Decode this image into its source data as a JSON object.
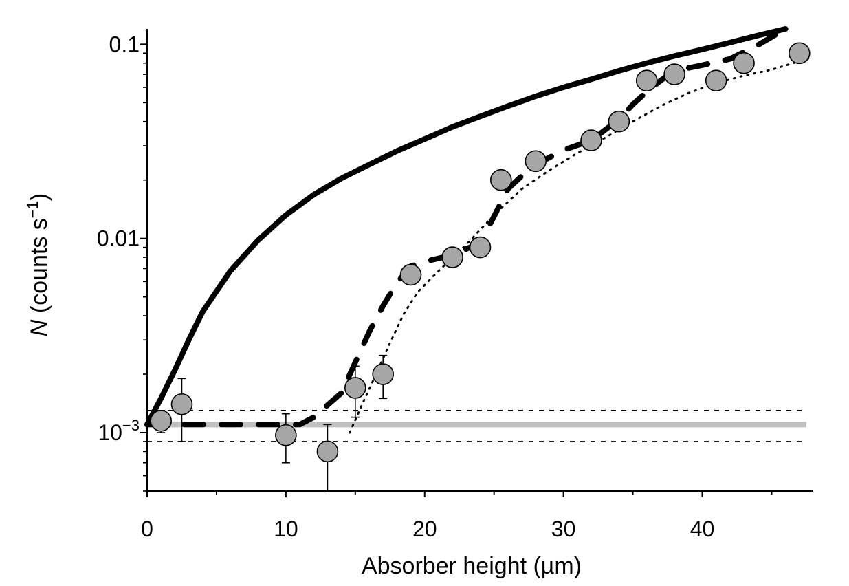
{
  "chart_data": {
    "type": "scatter",
    "xlabel": "Absorber height  (µm)",
    "ylabel": {
      "symbol": "N",
      "rest": " (counts s",
      "sup": "−1",
      "close": ")"
    },
    "xlim": [
      0,
      48
    ],
    "ylim": [
      0.0005,
      0.12
    ],
    "yscale": "log",
    "x_ticks": [
      0,
      10,
      20,
      30,
      40
    ],
    "x_tick_labels": [
      "0",
      "10",
      "20",
      "30",
      "40"
    ],
    "y_ticks": [
      0.001,
      0.01,
      0.1
    ],
    "y_tick_labels": [
      {
        "base": "10",
        "sup": "−3"
      },
      {
        "text": "0.01"
      },
      {
        "text": "0.1"
      }
    ],
    "grid": false,
    "series": [
      {
        "style": "markers-with-error-bars",
        "color": "#a6a6a6",
        "points": [
          {
            "x": 1,
            "y": 0.00115,
            "ylo": 0.001,
            "yhi": 0.0013
          },
          {
            "x": 2.5,
            "y": 0.0014,
            "ylo": 0.0009,
            "yhi": 0.0019
          },
          {
            "x": 10,
            "y": 0.00097,
            "ylo": 0.0007,
            "yhi": 0.00125
          },
          {
            "x": 13,
            "y": 0.0008,
            "ylo": 0.0005,
            "yhi": 0.0011
          },
          {
            "x": 15,
            "y": 0.0017,
            "ylo": 0.0012,
            "yhi": 0.0022
          },
          {
            "x": 17,
            "y": 0.002,
            "ylo": 0.0015,
            "yhi": 0.0025
          },
          {
            "x": 19,
            "y": 0.0065,
            "ylo": 0.0058,
            "yhi": 0.0073
          },
          {
            "x": 22,
            "y": 0.008,
            "ylo": 0.0073,
            "yhi": 0.0087
          },
          {
            "x": 24,
            "y": 0.009,
            "ylo": 0.0083,
            "yhi": 0.0097
          },
          {
            "x": 25.5,
            "y": 0.02,
            "ylo": 0.0185,
            "yhi": 0.0215
          },
          {
            "x": 28,
            "y": 0.025,
            "ylo": 0.0235,
            "yhi": 0.0265
          },
          {
            "x": 32,
            "y": 0.032,
            "ylo": 0.03,
            "yhi": 0.034
          },
          {
            "x": 34,
            "y": 0.04,
            "ylo": 0.037,
            "yhi": 0.043
          },
          {
            "x": 36,
            "y": 0.065,
            "ylo": 0.06,
            "yhi": 0.07
          },
          {
            "x": 38,
            "y": 0.07,
            "ylo": 0.065,
            "yhi": 0.075
          },
          {
            "x": 41,
            "y": 0.065,
            "ylo": 0.06,
            "yhi": 0.07
          },
          {
            "x": 43,
            "y": 0.08,
            "ylo": 0.075,
            "yhi": 0.085
          },
          {
            "x": 47,
            "y": 0.09,
            "ylo": 0.085,
            "yhi": 0.095
          }
        ]
      },
      {
        "style": "solid-thick",
        "color": "#000000",
        "x": [
          0,
          1,
          2,
          3,
          4,
          6,
          8,
          10,
          12,
          14,
          16,
          18,
          20,
          22,
          24,
          26,
          28,
          30,
          32,
          34,
          36,
          38,
          40,
          42,
          44,
          46
        ],
        "y": [
          0.0011,
          0.0015,
          0.0021,
          0.003,
          0.0042,
          0.0068,
          0.0098,
          0.0132,
          0.0168,
          0.0204,
          0.024,
          0.0282,
          0.0325,
          0.0375,
          0.0425,
          0.048,
          0.054,
          0.06,
          0.066,
          0.073,
          0.08,
          0.087,
          0.094,
          0.102,
          0.111,
          0.12
        ]
      },
      {
        "style": "dashed-thick",
        "color": "#000000",
        "x": [
          0,
          11,
          12,
          14,
          15,
          16,
          17,
          18,
          19,
          20,
          22,
          24,
          25,
          26,
          27,
          28,
          30,
          32,
          34,
          35,
          36,
          37,
          38,
          40,
          42,
          44,
          46
        ],
        "y": [
          0.0011,
          0.0011,
          0.0012,
          0.0016,
          0.0023,
          0.0033,
          0.0045,
          0.0059,
          0.0072,
          0.0076,
          0.0082,
          0.0095,
          0.013,
          0.018,
          0.021,
          0.024,
          0.0285,
          0.032,
          0.041,
          0.049,
          0.057,
          0.065,
          0.073,
          0.078,
          0.084,
          0.099,
          0.12
        ]
      },
      {
        "style": "dotted",
        "color": "#000000",
        "x": [
          14.6,
          15.5,
          16.5,
          17.5,
          18.5,
          19.5,
          21,
          23,
          25,
          27,
          29,
          31,
          33,
          35,
          37,
          39,
          41,
          43,
          45,
          48
        ],
        "y": [
          0.001,
          0.0014,
          0.002,
          0.0029,
          0.0041,
          0.0053,
          0.0068,
          0.0093,
          0.0132,
          0.018,
          0.0225,
          0.0275,
          0.033,
          0.04,
          0.048,
          0.056,
          0.063,
          0.069,
          0.074,
          0.086
        ]
      },
      {
        "style": "background-band",
        "center": {
          "y": 0.0011,
          "color": "#c0c0c0"
        },
        "bounds": [
          0.0009,
          0.0013
        ]
      }
    ]
  }
}
